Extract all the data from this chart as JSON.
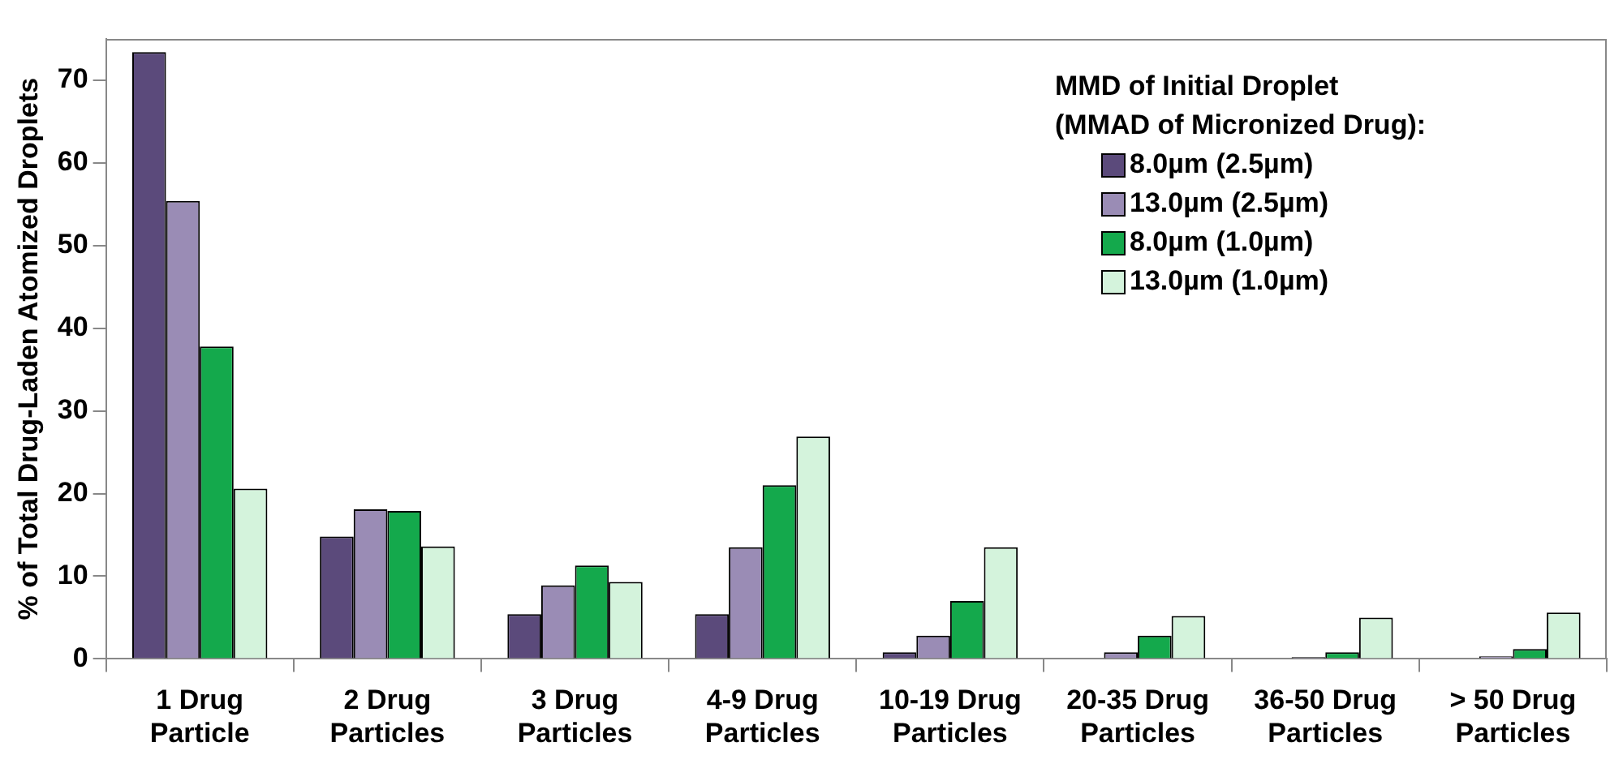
{
  "chart_data": {
    "type": "bar",
    "ylabel": "% of Total Drug-Laden Atomized Droplets",
    "legend_title": "MMD of Initial Droplet\n(MMAD of Micronized Drug):",
    "categories": [
      "1 Drug\nParticle",
      "2 Drug\nParticles",
      "3 Drug\nParticles",
      "4-9 Drug\nParticles",
      "10-19 Drug\nParticles",
      "20-35 Drug\nParticles",
      "36-50 Drug\nParticles",
      "> 50 Drug\nParticles"
    ],
    "series": [
      {
        "name": "8.0µm (2.5µm)",
        "color": "#5b4a7b",
        "values": [
          73.4,
          14.8,
          5.4,
          5.4,
          0.8,
          0.1,
          0,
          0.1
        ]
      },
      {
        "name": "13.0µm (2.5µm)",
        "color": "#9a8cb5",
        "values": [
          55.4,
          18.1,
          8.9,
          13.5,
          2.8,
          0.8,
          0.2,
          0.3
        ]
      },
      {
        "name": "8.0µm (1.0µm)",
        "color": "#14a94c",
        "values": [
          37.8,
          17.9,
          11.3,
          21.0,
          7.0,
          2.8,
          0.8,
          1.2
        ]
      },
      {
        "name": "13.0µm (1.0µm)",
        "color": "#d4f3dc",
        "values": [
          20.6,
          13.6,
          9.3,
          26.9,
          13.5,
          5.2,
          5.0,
          5.6
        ]
      }
    ],
    "ylim": [
      0,
      75
    ],
    "yticks": [
      0,
      10,
      20,
      30,
      40,
      50,
      60,
      70
    ],
    "grid": false,
    "legend": "top right"
  }
}
